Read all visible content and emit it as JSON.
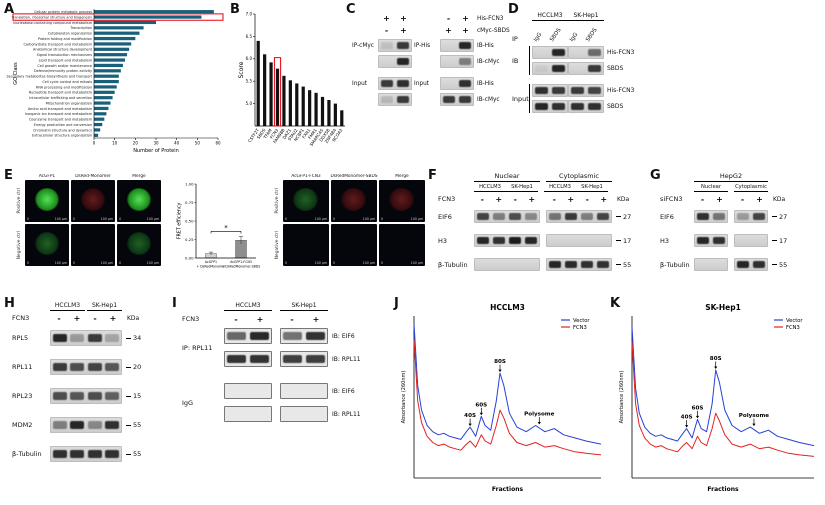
{
  "panel_letters": {
    "A": "A",
    "B": "B",
    "C": "C",
    "D": "D",
    "E": "E",
    "F": "F",
    "G": "G",
    "H": "H",
    "I": "I",
    "J": "J",
    "K": "K"
  },
  "chart_data": [
    {
      "id": "A",
      "type": "bar",
      "orientation": "horizontal",
      "xlabel": "Number of Protein",
      "ylabel": "GO Class",
      "xlim": [
        0,
        60
      ],
      "xticks": [
        0,
        10,
        20,
        30,
        40,
        50,
        60
      ],
      "bar_color": "#19607a",
      "highlight_index": 1,
      "highlight_color": "#e8000d",
      "categories": [
        "Cellular protein metabolic process",
        "Translation, ribosomal structure and biogenesis",
        "Nucleobase-containing compound metabolism",
        "Transcription",
        "Cytoskeleton organization",
        "Protein folding and modification",
        "Carbohydrate transport and metabolism",
        "Anatomical structure development",
        "Signal transduction mechanisms",
        "Lipid transport and metabolism",
        "Cell growth and/or maintenance",
        "Defense/immunity protein activity",
        "Secondary metabolites biosynthesis and transport",
        "Cell cycle control and mitosis",
        "RNA processing and modification",
        "Nucleotide transport and metabolism",
        "Intracellular trafficking and secretion",
        "Mitochondrion organization",
        "Amino acid transport and metabolism",
        "Inorganic ion transport and metabolism",
        "Coenzyme transport and metabolism",
        "Energy production and conversion",
        "Chromatin structure and dynamics",
        "Extracellular structure organization"
      ],
      "values": [
        58,
        52,
        30,
        24,
        22,
        20,
        18,
        17,
        16,
        15,
        14,
        13,
        12,
        12,
        11,
        10,
        9,
        8,
        7,
        6,
        5,
        4,
        3,
        2
      ]
    },
    {
      "id": "B",
      "type": "bar",
      "orientation": "vertical",
      "ylabel": "Score",
      "ylim": [
        4.5,
        7.0
      ],
      "yticks": [
        5.0,
        5.5,
        6.0,
        6.5,
        7.0
      ],
      "bar_color": "#111111",
      "highlight_index": 3,
      "highlight_color": "#e8000d",
      "categories": [
        "CSTF2T",
        "SBDS",
        "TFAM",
        "FCN3",
        "FAM98B",
        "DAZ1",
        "STAU2",
        "NCBP1",
        "FXR1",
        "FMR1",
        "SMARCA5",
        "DDX58",
        "ZNF484",
        "NCOA3"
      ],
      "values": [
        6.4,
        6.1,
        5.92,
        5.78,
        5.62,
        5.52,
        5.45,
        5.38,
        5.3,
        5.24,
        5.15,
        5.08,
        5.0,
        4.85
      ]
    },
    {
      "id": "E-chart",
      "type": "bar",
      "ylabel": "FRET efficiency",
      "ylim": [
        0,
        1.0
      ],
      "yticks": [
        0,
        0.25,
        0.5,
        0.75,
        1.0
      ],
      "categories": [
        "AcGFP1 + DsRedMonomer",
        "AcGFP1-FCN3 + DsRedMonomer-SBDS"
      ],
      "values": [
        0.06,
        0.24
      ],
      "errors": [
        0.02,
        0.05
      ],
      "significance": "*",
      "bar_colors": [
        "#cfcfcf",
        "#8f8f8f"
      ]
    },
    {
      "id": "J",
      "type": "line",
      "title": "HCCLM3",
      "xlabel": "Fractions",
      "ylabel": "Absorbance (260nm)",
      "x": [
        0,
        2,
        4,
        7,
        10,
        13,
        16,
        19,
        22,
        25,
        28,
        30,
        33,
        36,
        38,
        41,
        44,
        46,
        48,
        51,
        55,
        60,
        65,
        70,
        75,
        80,
        86,
        92,
        100
      ],
      "series": [
        {
          "name": "Vector",
          "color": "#2741d6",
          "y": [
            1.0,
            0.6,
            0.44,
            0.34,
            0.3,
            0.28,
            0.29,
            0.27,
            0.26,
            0.25,
            0.3,
            0.33,
            0.27,
            0.4,
            0.34,
            0.31,
            0.5,
            0.68,
            0.6,
            0.42,
            0.33,
            0.3,
            0.34,
            0.3,
            0.32,
            0.28,
            0.26,
            0.24,
            0.22
          ]
        },
        {
          "name": "FCN3",
          "color": "#e02424",
          "y": [
            0.9,
            0.5,
            0.36,
            0.27,
            0.23,
            0.21,
            0.22,
            0.2,
            0.19,
            0.18,
            0.22,
            0.24,
            0.2,
            0.28,
            0.24,
            0.22,
            0.34,
            0.44,
            0.39,
            0.29,
            0.23,
            0.21,
            0.23,
            0.2,
            0.21,
            0.19,
            0.17,
            0.16,
            0.15
          ]
        }
      ],
      "annotations": [
        {
          "label": "40S",
          "x": 30,
          "y": 0.33
        },
        {
          "label": "60S",
          "x": 36,
          "y": 0.4
        },
        {
          "label": "80S",
          "x": 46,
          "y": 0.68
        },
        {
          "label": "Polysome",
          "x": 67,
          "y": 0.34
        }
      ]
    },
    {
      "id": "K",
      "type": "line",
      "title": "SK-Hep1",
      "xlabel": "Fractions",
      "ylabel": "Absorbance (260nm)",
      "x": [
        0,
        2,
        4,
        7,
        10,
        13,
        16,
        19,
        22,
        25,
        28,
        30,
        33,
        36,
        38,
        41,
        44,
        46,
        48,
        51,
        55,
        60,
        65,
        70,
        75,
        80,
        86,
        92,
        100
      ],
      "series": [
        {
          "name": "Vector",
          "color": "#2741d6",
          "y": [
            0.98,
            0.58,
            0.42,
            0.33,
            0.29,
            0.27,
            0.28,
            0.26,
            0.25,
            0.24,
            0.29,
            0.32,
            0.26,
            0.38,
            0.32,
            0.3,
            0.48,
            0.7,
            0.62,
            0.44,
            0.34,
            0.3,
            0.33,
            0.29,
            0.31,
            0.27,
            0.25,
            0.23,
            0.21
          ]
        },
        {
          "name": "FCN3",
          "color": "#e02424",
          "y": [
            0.88,
            0.48,
            0.34,
            0.26,
            0.22,
            0.2,
            0.21,
            0.19,
            0.18,
            0.17,
            0.21,
            0.23,
            0.19,
            0.27,
            0.23,
            0.21,
            0.32,
            0.42,
            0.37,
            0.28,
            0.22,
            0.2,
            0.22,
            0.19,
            0.2,
            0.18,
            0.16,
            0.15,
            0.14
          ]
        }
      ],
      "annotations": [
        {
          "label": "40S",
          "x": 30,
          "y": 0.32
        },
        {
          "label": "60S",
          "x": 36,
          "y": 0.38
        },
        {
          "label": "80S",
          "x": 46,
          "y": 0.7
        },
        {
          "label": "Polysome",
          "x": 67,
          "y": 0.33
        }
      ]
    }
  ],
  "panels": {
    "C": {
      "lane_headers": [
        {
          "label": "His-FCN3",
          "left": [
            "+",
            "+"
          ],
          "right": [
            "-",
            "+"
          ]
        },
        {
          "label": "cMyc-SBDS",
          "left": [
            "-",
            "+"
          ],
          "right": [
            "+",
            "+"
          ]
        }
      ],
      "rows": [
        {
          "left_label": "IP-cMyc",
          "left_bands": [
            0.1,
            0.8
          ],
          "mid_label": "IP-His",
          "right_bands": [
            0,
            0.9
          ],
          "right_label": "IB-His"
        },
        {
          "left_label": "",
          "left_bands": [
            0,
            0.9
          ],
          "mid_label": "",
          "right_bands": [
            0,
            0.45
          ],
          "right_label": "IB-cMyc"
        },
        {
          "left_label": "Input",
          "left_bands": [
            0.8,
            0.85
          ],
          "mid_label": "Input",
          "right_bands": [
            0,
            0.85
          ],
          "right_label": "IB-His"
        },
        {
          "left_label": "",
          "left_bands": [
            0.15,
            0.8
          ],
          "mid_label": "",
          "right_bands": [
            0.8,
            0.8
          ],
          "right_label": "IB-cMyc"
        }
      ]
    },
    "D": {
      "cell_lines": [
        "HCCLM3",
        "SK-Hep1"
      ],
      "ip_label": "IP",
      "lane_labels": [
        "IgG",
        "SBDS",
        "IgG",
        "SBDS"
      ],
      "sections": [
        {
          "label": "IB",
          "rows": [
            {
              "right": "His-FCN3",
              "l": [
                0,
                0.9
              ],
              "r": [
                0,
                0.55
              ]
            },
            {
              "right": "SBDS",
              "l": [
                0.05,
                0.9
              ],
              "r": [
                0,
                0.8
              ]
            }
          ]
        },
        {
          "label": "Input",
          "rows": [
            {
              "right": "His-FCN3",
              "l": [
                0.85,
                0.8
              ],
              "r": [
                0.8,
                0.75
              ]
            },
            {
              "right": "SBDS",
              "l": [
                0.9,
                0.85
              ],
              "r": [
                0.85,
                0.85
              ]
            }
          ]
        }
      ]
    },
    "E": {
      "left_block": {
        "col_headers": [
          "AcGFP1",
          "DsRed-Monomer",
          "Merge"
        ],
        "row_labels": [
          "Positive ctrl",
          "Negative ctrl"
        ],
        "cells": [
          [
            "green-cell",
            "red-faint",
            "green-cell"
          ],
          [
            "green-dim",
            "dark",
            "green-dim"
          ]
        ],
        "scale0": "0",
        "scale1": "100 μm"
      },
      "right_block": {
        "col_headers": [
          "AcGFP1-FCN3",
          "DsRedMonomer-SBDS",
          "Merge"
        ],
        "row_labels": [
          "Positive ctrl",
          "Negative ctrl"
        ],
        "cells": [
          [
            "green-dim",
            "red-faint",
            "red-faint"
          ],
          [
            "dark",
            "dark",
            "dark"
          ]
        ],
        "scale0": "0",
        "scale1": "100 μm"
      }
    },
    "F": {
      "top_groups": [
        "Nuclear",
        "Cytoplasmic"
      ],
      "cell_lines": [
        "HCCLM3",
        "SK-Hep1",
        "HCCLM3",
        "SK-Hep1"
      ],
      "treatment_label": "FCN3",
      "treatments": [
        "-",
        "+",
        "-",
        "+",
        "-",
        "+",
        "-",
        "+"
      ],
      "kda_label": "KDa",
      "rows": [
        {
          "label": "EIF6",
          "kda": "27",
          "bands_n": [
            0.75,
            0.45,
            0.7,
            0.4
          ],
          "bands_c": [
            0.5,
            0.8,
            0.45,
            0.75
          ]
        },
        {
          "label": "H3",
          "kda": "17",
          "bands_n": [
            0.9,
            0.85,
            0.95,
            0.9
          ],
          "bands_c": [
            0,
            0,
            0,
            0
          ]
        },
        {
          "label": "β-Tubulin",
          "kda": "55",
          "bands_n": [
            0,
            0,
            0,
            0
          ],
          "bands_c": [
            0.9,
            0.88,
            0.85,
            0.85
          ]
        }
      ]
    },
    "G": {
      "cell_line": "HepG2",
      "top_groups": [
        "Nuclear",
        "Cytoplasmic"
      ],
      "treatment_label": "siFCN3",
      "treatments": [
        "-",
        "+",
        "-",
        "+"
      ],
      "kda_label": "KDa",
      "rows": [
        {
          "label": "EIF6",
          "kda": "27",
          "bands_n": [
            0.85,
            0.5
          ],
          "bands_c": [
            0.3,
            0.75
          ]
        },
        {
          "label": "H3",
          "kda": "17",
          "bands_n": [
            0.9,
            0.85
          ],
          "bands_c": [
            0,
            0
          ]
        },
        {
          "label": "β-Tubulin",
          "kda": "55",
          "bands_n": [
            0,
            0
          ],
          "bands_c": [
            0.9,
            0.85
          ]
        }
      ]
    },
    "H": {
      "cell_lines": [
        "HCCLM3",
        "SK-Hep1"
      ],
      "treatment_label": "FCN3",
      "treatments": [
        "-",
        "+",
        "-",
        "+"
      ],
      "kda_label": "KDa",
      "rows": [
        {
          "label": "RPL5",
          "kda": "34",
          "bands": [
            0.9,
            0.3,
            0.8,
            0.25
          ]
        },
        {
          "label": "RPL11",
          "kda": "20",
          "bands": [
            0.8,
            0.7,
            0.75,
            0.65
          ]
        },
        {
          "label": "RPL23",
          "kda": "15",
          "bands": [
            0.7,
            0.65,
            0.7,
            0.6
          ]
        },
        {
          "label": "MDM2",
          "kda": "55",
          "bands": [
            0.45,
            0.9,
            0.4,
            0.85
          ]
        },
        {
          "label": "β-Tubulin",
          "kda": "55",
          "bands": [
            0.85,
            0.85,
            0.85,
            0.85
          ]
        }
      ]
    },
    "I": {
      "cell_lines": [
        "HCCLM3",
        "SK-Hep1"
      ],
      "treatment_label": "FCN3",
      "treatments": [
        "-",
        "+",
        "-",
        "+"
      ],
      "sections": [
        {
          "left_label": "IP: RPL11",
          "strips": [
            {
              "right_label": "IB: EIF6",
              "bands_left": [
                0.6,
                0.9
              ],
              "bands_right": [
                0.55,
                0.85
              ]
            },
            {
              "right_label": "IB: RPL11",
              "bands_left": [
                0.85,
                0.85
              ],
              "bands_right": [
                0.8,
                0.8
              ]
            }
          ]
        },
        {
          "left_label": "IgG",
          "strips": [
            {
              "right_label": "IB: EIF6",
              "bands_left": [
                0,
                0
              ],
              "bands_right": [
                0,
                0
              ]
            },
            {
              "right_label": "IB: RPL11",
              "bands_left": [
                0,
                0
              ],
              "bands_right": [
                0,
                0
              ]
            }
          ]
        }
      ]
    }
  }
}
